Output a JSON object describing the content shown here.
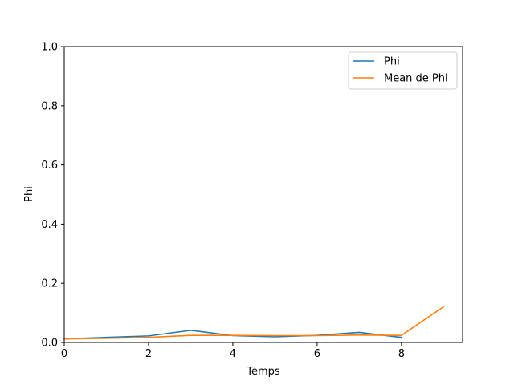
{
  "chart_data": {
    "type": "line",
    "xlabel": "Temps",
    "ylabel": "Phi",
    "xlim": [
      0,
      9.45
    ],
    "ylim": [
      0,
      1.0
    ],
    "xticks": [
      0,
      2,
      4,
      6,
      8
    ],
    "xtick_labels": [
      "0",
      "2",
      "4",
      "6",
      "8"
    ],
    "yticks": [
      0,
      0.2,
      0.4,
      0.6,
      0.8,
      1.0
    ],
    "ytick_labels": [
      "0.0",
      "0.2",
      "0.4",
      "0.6",
      "0.8",
      "1.0"
    ],
    "grid": false,
    "legend_position": "top-right",
    "series": [
      {
        "name": "Phi",
        "color": "#1f77b4",
        "x": [
          0,
          1,
          2,
          3,
          4,
          5,
          6,
          7,
          8
        ],
        "y": [
          0.012,
          0.017,
          0.022,
          0.041,
          0.023,
          0.019,
          0.024,
          0.034,
          0.017
        ]
      },
      {
        "name": "Mean de Phi",
        "color": "#ff7f0e",
        "x": [
          0,
          1,
          2,
          3,
          4,
          5,
          6,
          7,
          8,
          9
        ],
        "y": [
          0.012,
          0.014,
          0.017,
          0.024,
          0.024,
          0.023,
          0.023,
          0.025,
          0.024,
          0.121
        ]
      }
    ]
  }
}
